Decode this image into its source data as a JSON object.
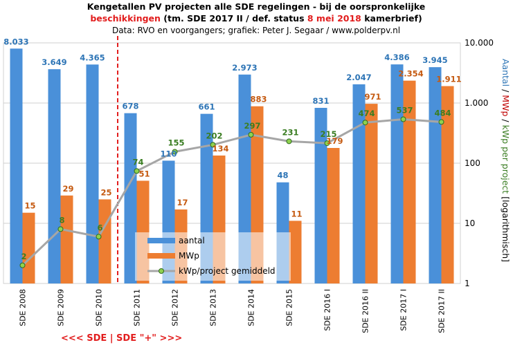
{
  "title": {
    "line1": "Kengetallen  PV projecten alle SDE regelingen  - bij de oorspronkelijke",
    "line2_red_a": "beschikkingen",
    "line2_mid": "  (tm. SDE 2017 II / def. status ",
    "line2_red_b": "8 mei 2018",
    "line2_end": " kamerbrief)",
    "line3": "Data: RVO  en voorgangers;  grafiek:  Peter J. Segaar / www.polderpv.nl"
  },
  "bottom_note": "<<<  SDE  | SDE \"+\"  >>>",
  "colors": {
    "aantal": "#4a90d9",
    "mwp": "#ed7d31",
    "line": "#a6a6a6",
    "marker_fill": "#8fd14f",
    "marker_stroke": "#2e6b1e",
    "aantal_label": "#2e75b6",
    "mwp_label": "#c55a11",
    "kwp_label": "#3a7d22",
    "divider": "#e21d1d",
    "axis_aantal": "#2e75b6",
    "axis_mwp": "#c00000",
    "axis_kwp": "#3a7d22"
  },
  "chart_data": {
    "type": "bar",
    "categories": [
      "SDE 2008",
      "SDE 2009",
      "SDE 2010",
      "SDE 2011",
      "SDE 2012",
      "SDE 2013",
      "SDE 2014",
      "SDE 2015",
      "SDE 2016 I",
      "SDE 2016 II",
      "SDE 2017 I",
      "SDE 2017 II"
    ],
    "series": [
      {
        "name": "aantal",
        "kind": "bar",
        "values": [
          8033,
          3649,
          4365,
          678,
          110,
          661,
          2973,
          48,
          831,
          2047,
          4386,
          3945
        ],
        "labels": [
          "8.033",
          "3.649",
          "4.365",
          "678",
          "110",
          "661",
          "2.973",
          "48",
          "831",
          "2.047",
          "4.386",
          "3.945"
        ]
      },
      {
        "name": "MWp",
        "kind": "bar",
        "values": [
          15,
          29,
          25,
          51,
          17,
          134,
          883,
          11,
          179,
          971,
          2354,
          1911
        ],
        "labels": [
          "15",
          "29",
          "25",
          "51",
          "17",
          "134",
          "883",
          "11",
          "179",
          "971",
          "2.354",
          "1.911"
        ]
      },
      {
        "name": "kWp/project gemiddeld",
        "kind": "line",
        "values": [
          2,
          8,
          6,
          74,
          155,
          202,
          297,
          231,
          215,
          474,
          537,
          484
        ],
        "labels": [
          "2",
          "8",
          "6",
          "74",
          "155",
          "202",
          "297",
          "231",
          "215",
          "474",
          "537",
          "484"
        ]
      }
    ],
    "yscale": "log",
    "ylim": [
      1,
      10000
    ],
    "yticks": [
      1,
      10,
      100,
      1000,
      10000
    ],
    "ytick_labels": [
      "1",
      "10",
      "100",
      "1.000",
      "10.000"
    ],
    "ylabel_parts": [
      "Aantal",
      " / ",
      "MWp",
      " / ",
      "kWp per project",
      " [logarithmisch]"
    ],
    "divider_after_category": "SDE 2010",
    "grid": true,
    "legend": "bottom-center inside plot"
  }
}
